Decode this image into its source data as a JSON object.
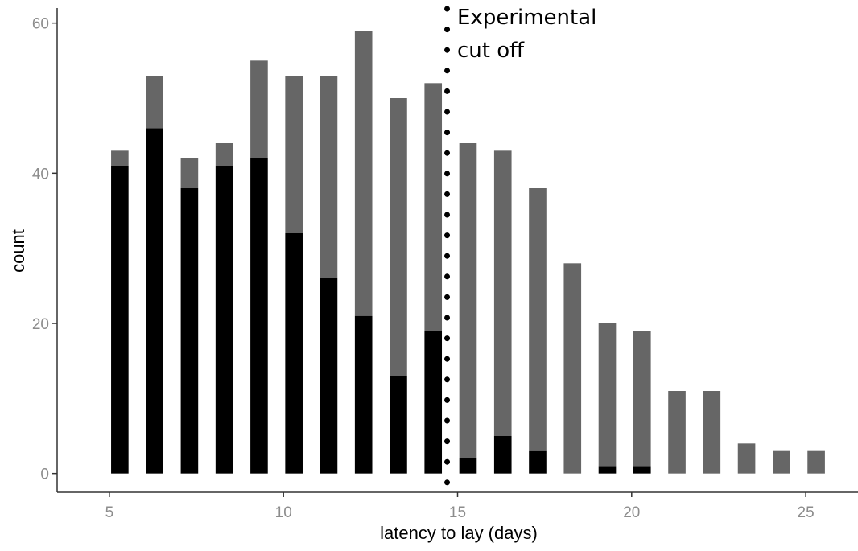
{
  "chart_data": {
    "type": "bar",
    "stacked": true,
    "xlabel": "latency to lay (days)",
    "ylabel": "count",
    "xlim": [
      3.5,
      26.5
    ],
    "ylim": [
      -2.5,
      62
    ],
    "x_ticks": [
      5,
      10,
      15,
      20,
      25
    ],
    "y_ticks": [
      0,
      20,
      40,
      60
    ],
    "grid": false,
    "legend": "none",
    "categories": [
      5.3,
      6.3,
      7.3,
      8.3,
      9.3,
      10.3,
      11.3,
      12.3,
      13.3,
      14.3,
      15.3,
      16.3,
      17.3,
      18.3,
      19.3,
      20.3,
      21.3,
      22.3,
      23.3,
      24.3,
      25.3
    ],
    "series": [
      {
        "color": "#000000",
        "values": [
          41,
          46,
          38,
          41,
          42,
          32,
          26,
          21,
          13,
          19,
          2,
          5,
          3,
          0,
          1,
          1,
          0,
          0,
          0,
          0,
          0
        ]
      },
      {
        "color": "#666666",
        "values": [
          2,
          7,
          4,
          3,
          13,
          21,
          27,
          38,
          37,
          33,
          42,
          38,
          35,
          28,
          19,
          18,
          11,
          11,
          4,
          3,
          3
        ]
      }
    ],
    "totals": [
      43,
      53,
      42,
      44,
      55,
      53,
      53,
      59,
      50,
      52,
      44,
      43,
      38,
      28,
      20,
      19,
      11,
      11,
      4,
      3,
      3
    ],
    "cutoff": {
      "x": 14.7,
      "style": "dotted",
      "label_lines": [
        "Experimental",
        "cut off"
      ]
    }
  }
}
